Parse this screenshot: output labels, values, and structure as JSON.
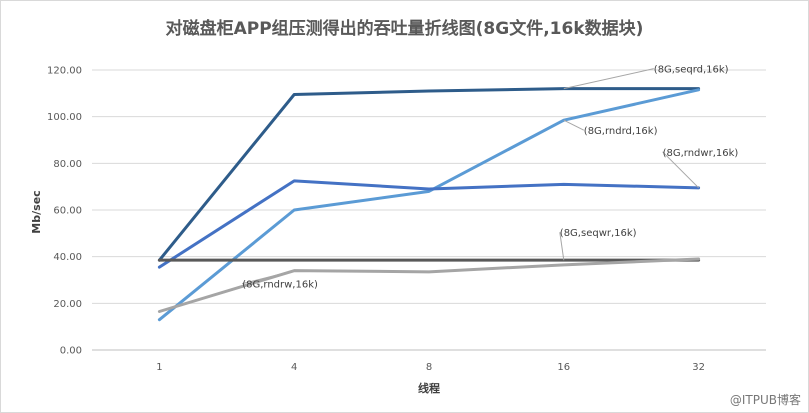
{
  "chart_data": {
    "type": "line",
    "title": "对磁盘柜APP组压测得出的吞吐量折线图(8G文件,16k数据块)",
    "xlabel": "线程",
    "ylabel": "Mb/sec",
    "categories": [
      "1",
      "4",
      "8",
      "16",
      "32"
    ],
    "ylim": [
      0,
      120
    ],
    "yticks": [
      "0.00",
      "20.00",
      "40.00",
      "60.00",
      "80.00",
      "100.00",
      "120.00"
    ],
    "grid": true,
    "legend": "callouts",
    "series": [
      {
        "name": "(8G,seqrd,16k)",
        "color": "#2e5c8a",
        "values": [
          38.5,
          109.5,
          111,
          112,
          112
        ]
      },
      {
        "name": "(8G,rndrd,16k)",
        "color": "#5b9bd5",
        "values": [
          13,
          60,
          68,
          98.5,
          111.5
        ]
      },
      {
        "name": "(8G,rndwr,16k)",
        "color": "#4472c4",
        "values": [
          35.5,
          72.5,
          69,
          71,
          69.5
        ]
      },
      {
        "name": "(8G,seqwr,16k)",
        "color": "#595959",
        "values": [
          38.5,
          38.5,
          38.5,
          38.5,
          38.5
        ]
      },
      {
        "name": "(8G,rndrw,16k)",
        "color": "#a5a5a5",
        "values": [
          16.5,
          34,
          33.5,
          36.5,
          39
        ]
      }
    ]
  },
  "watermark": "@ITPUB博客"
}
